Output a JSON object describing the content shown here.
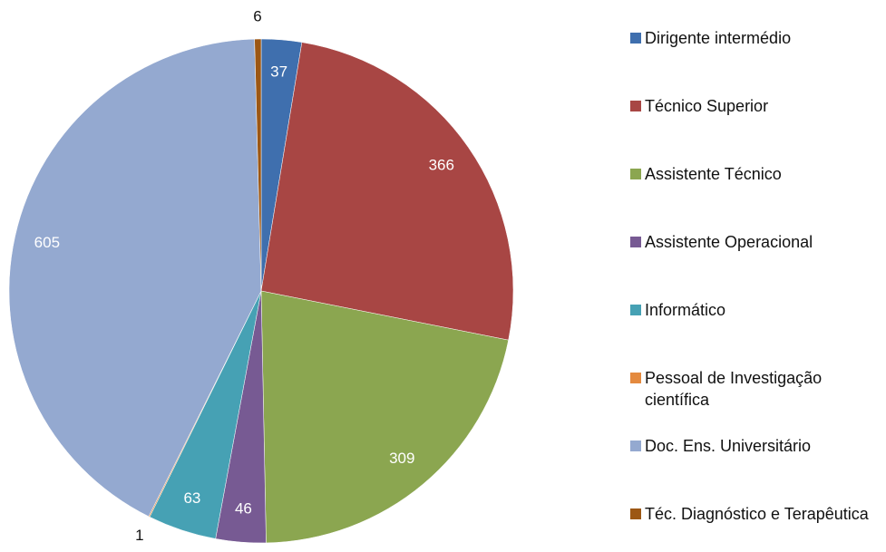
{
  "chart_data": {
    "type": "pie",
    "categories": [
      "Dirigente intermédio",
      "Técnico Superior",
      "Assistente Técnico",
      "Assistente Operacional",
      "Informático",
      "Pessoal de Investigação científica",
      "Doc. Ens. Universitário",
      "Téc. Diagnóstico e Terapêutica"
    ],
    "values": [
      37,
      366,
      309,
      46,
      63,
      1,
      605,
      6
    ],
    "colors": [
      "#3f6fae",
      "#a84644",
      "#8ba650",
      "#775a93",
      "#46a1b4",
      "#e48a3f",
      "#94a9d0",
      "#9c5714"
    ]
  }
}
